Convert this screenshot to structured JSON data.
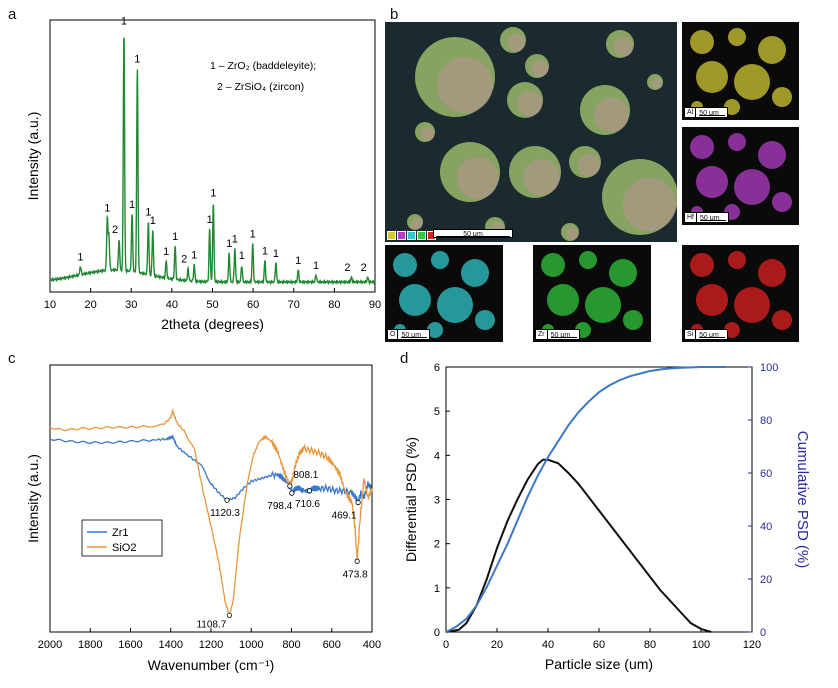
{
  "panel_labels": {
    "a": "a",
    "b": "b",
    "c": "c",
    "d": "d"
  },
  "chart_data": [
    {
      "id": "a",
      "type": "line",
      "title": "",
      "xlabel": "2theta (degrees)",
      "ylabel": "Intensity (a.u.)",
      "xlim": [
        10,
        90
      ],
      "ylim": [
        0,
        100
      ],
      "xticks": [
        10,
        20,
        30,
        40,
        50,
        60,
        70,
        80,
        90
      ],
      "legend": [
        "1 – ZrO₂ (baddeleyite);",
        "2 – ZrSiO₄ (zircon)"
      ],
      "peaks": [
        {
          "x": 17.5,
          "y": 3.5,
          "label": "1"
        },
        {
          "x": 24.1,
          "y": 22,
          "label": "1"
        },
        {
          "x": 24.5,
          "y": 14,
          "label": ""
        },
        {
          "x": 27.0,
          "y": 13,
          "label": "2"
        },
        {
          "x": 28.2,
          "y": 100,
          "label": "1"
        },
        {
          "x": 30.2,
          "y": 24,
          "label": "1"
        },
        {
          "x": 31.5,
          "y": 85,
          "label": "1"
        },
        {
          "x": 34.2,
          "y": 22,
          "label": "1"
        },
        {
          "x": 35.3,
          "y": 19,
          "label": "1"
        },
        {
          "x": 38.6,
          "y": 7,
          "label": "1"
        },
        {
          "x": 40.8,
          "y": 14,
          "label": "1"
        },
        {
          "x": 44.0,
          "y": 5,
          "label": "2"
        },
        {
          "x": 45.5,
          "y": 7,
          "label": "1"
        },
        {
          "x": 49.3,
          "y": 22,
          "label": "1"
        },
        {
          "x": 50.2,
          "y": 33,
          "label": "1"
        },
        {
          "x": 54.1,
          "y": 12,
          "label": "1"
        },
        {
          "x": 55.5,
          "y": 14,
          "label": "1"
        },
        {
          "x": 57.2,
          "y": 7,
          "label": "1"
        },
        {
          "x": 59.9,
          "y": 16,
          "label": "1"
        },
        {
          "x": 62.9,
          "y": 9,
          "label": "1"
        },
        {
          "x": 65.6,
          "y": 8,
          "label": "1"
        },
        {
          "x": 71.1,
          "y": 5,
          "label": "1"
        },
        {
          "x": 75.5,
          "y": 3,
          "label": "1"
        },
        {
          "x": 84.2,
          "y": 2,
          "label": "2"
        },
        {
          "x": 88.2,
          "y": 2,
          "label": "2"
        }
      ]
    },
    {
      "id": "c",
      "type": "line",
      "xlabel": "Wavenumber (cm⁻¹)",
      "ylabel": "Intensity (a.u.)",
      "xlim": [
        2000,
        400
      ],
      "xticks": [
        2000,
        1800,
        1600,
        1400,
        1200,
        1000,
        800,
        600,
        400
      ],
      "series": [
        {
          "name": "Zr1",
          "color": "#3c78c8",
          "points": [
            [
              2000,
              77
            ],
            [
              1900,
              76
            ],
            [
              1800,
              75.5
            ],
            [
              1700,
              75.5
            ],
            [
              1600,
              76
            ],
            [
              1500,
              76.5
            ],
            [
              1420,
              77
            ],
            [
              1390,
              78
            ],
            [
              1370,
              74
            ],
            [
              1330,
              71
            ],
            [
              1250,
              66
            ],
            [
              1200,
              58
            ],
            [
              1160,
              54
            ],
            [
              1120.3,
              51
            ],
            [
              1080,
              52
            ],
            [
              1040,
              56
            ],
            [
              1000,
              59
            ],
            [
              960,
              60
            ],
            [
              920,
              61
            ],
            [
              880,
              62
            ],
            [
              850,
              61
            ],
            [
              820,
              58
            ],
            [
              808.1,
              57
            ],
            [
              798.4,
              54
            ],
            [
              780,
              56
            ],
            [
              760,
              56
            ],
            [
              740,
              55
            ],
            [
              710.6,
              55
            ],
            [
              690,
              56
            ],
            [
              660,
              56
            ],
            [
              620,
              56
            ],
            [
              580,
              55
            ],
            [
              540,
              55
            ],
            [
              500,
              54
            ],
            [
              480,
              52
            ],
            [
              469.1,
              50
            ],
            [
              455,
              54
            ],
            [
              440,
              52
            ],
            [
              420,
              58
            ],
            [
              400,
              56
            ]
          ]
        },
        {
          "name": "SiO2",
          "color": "#e8963c",
          "points": [
            [
              2000,
              82
            ],
            [
              1950,
              81
            ],
            [
              1900,
              81
            ],
            [
              1850,
              81.5
            ],
            [
              1800,
              81.5
            ],
            [
              1700,
              82
            ],
            [
              1600,
              82
            ],
            [
              1500,
              82.5
            ],
            [
              1440,
              83
            ],
            [
              1400,
              86
            ],
            [
              1390,
              89
            ],
            [
              1370,
              84
            ],
            [
              1330,
              80
            ],
            [
              1280,
              72
            ],
            [
              1240,
              55
            ],
            [
              1200,
              40
            ],
            [
              1160,
              24
            ],
            [
              1130,
              8
            ],
            [
              1108.7,
              2
            ],
            [
              1090,
              8
            ],
            [
              1060,
              34
            ],
            [
              1020,
              58
            ],
            [
              990,
              70
            ],
            [
              960,
              76
            ],
            [
              930,
              78
            ],
            [
              900,
              76
            ],
            [
              870,
              72
            ],
            [
              840,
              64
            ],
            [
              810,
              57
            ],
            [
              795,
              60
            ],
            [
              780,
              66
            ],
            [
              760,
              71
            ],
            [
              740,
              73
            ],
            [
              700,
              72
            ],
            [
              660,
              71
            ],
            [
              620,
              69
            ],
            [
              590,
              66
            ],
            [
              560,
              62
            ],
            [
              530,
              54
            ],
            [
              500,
              50
            ],
            [
              485,
              40
            ],
            [
              473.8,
              25
            ],
            [
              460,
              42
            ],
            [
              440,
              60
            ],
            [
              420,
              52
            ],
            [
              400,
              56
            ]
          ]
        }
      ],
      "annotations": [
        {
          "x": 1120.3,
          "y": 51,
          "label": "1120.3"
        },
        {
          "x": 1108.7,
          "y": 2,
          "label": "1108.7"
        },
        {
          "x": 808.1,
          "y": 57,
          "label": "808.1"
        },
        {
          "x": 798.4,
          "y": 54,
          "label": "798.4"
        },
        {
          "x": 710.6,
          "y": 55,
          "label": "710.6"
        },
        {
          "x": 469.1,
          "y": 50,
          "label": "469.1"
        },
        {
          "x": 473.8,
          "y": 25,
          "label": "473.8"
        }
      ]
    },
    {
      "id": "d",
      "type": "line",
      "xlabel": "Particle size (um)",
      "ylabel": "Differential PSD (%)",
      "y2label": "Cumulative PSD (%)",
      "xlim": [
        0,
        120
      ],
      "ylim": [
        0,
        6
      ],
      "y2lim": [
        0,
        100
      ],
      "xticks": [
        0,
        20,
        40,
        60,
        80,
        100,
        120
      ],
      "yticks": [
        0,
        1,
        2,
        3,
        4,
        5,
        6
      ],
      "y2ticks": [
        0,
        20,
        40,
        60,
        80,
        100
      ],
      "series": [
        {
          "name": "Differential PSD",
          "axis": "y",
          "color": "#111111",
          "points": [
            [
              0,
              0
            ],
            [
              5,
              0.05
            ],
            [
              8,
              0.2
            ],
            [
              12,
              0.6
            ],
            [
              16,
              1.2
            ],
            [
              20,
              1.9
            ],
            [
              24,
              2.5
            ],
            [
              28,
              3.0
            ],
            [
              32,
              3.45
            ],
            [
              36,
              3.8
            ],
            [
              38,
              3.9
            ],
            [
              40,
              3.9
            ],
            [
              44,
              3.82
            ],
            [
              48,
              3.6
            ],
            [
              52,
              3.35
            ],
            [
              56,
              3.05
            ],
            [
              60,
              2.75
            ],
            [
              64,
              2.45
            ],
            [
              68,
              2.15
            ],
            [
              72,
              1.85
            ],
            [
              76,
              1.55
            ],
            [
              80,
              1.25
            ],
            [
              84,
              0.95
            ],
            [
              88,
              0.7
            ],
            [
              92,
              0.45
            ],
            [
              96,
              0.2
            ],
            [
              100,
              0.07
            ],
            [
              104,
              0
            ]
          ]
        },
        {
          "name": "Cumulative PSD",
          "axis": "y2",
          "color": "#3c78c8",
          "points": [
            [
              0,
              0
            ],
            [
              4,
              2
            ],
            [
              8,
              5
            ],
            [
              12,
              10
            ],
            [
              16,
              17
            ],
            [
              20,
              25
            ],
            [
              24,
              33
            ],
            [
              28,
              42
            ],
            [
              32,
              51
            ],
            [
              36,
              59
            ],
            [
              40,
              66
            ],
            [
              44,
              72
            ],
            [
              48,
              78
            ],
            [
              52,
              83
            ],
            [
              56,
              87
            ],
            [
              60,
              90.5
            ],
            [
              64,
              93
            ],
            [
              68,
              95
            ],
            [
              72,
              96.5
            ],
            [
              76,
              97.5
            ],
            [
              80,
              98.5
            ],
            [
              85,
              99.2
            ],
            [
              90,
              99.6
            ],
            [
              100,
              100
            ],
            [
              110,
              100
            ]
          ]
        }
      ]
    }
  ],
  "maps": {
    "main_scale": "50 μm",
    "elements": [
      {
        "name": "Al",
        "scale": "50 μm",
        "color": "#d4c836"
      },
      {
        "name": "Hf",
        "scale": "50 μm",
        "color": "#b43cc8"
      },
      {
        "name": "O",
        "scale": "50 μm",
        "color": "#30c8cc"
      },
      {
        "name": "Zr",
        "scale": "50 μm",
        "color": "#30c83c"
      },
      {
        "name": "Si",
        "scale": "50 μm",
        "color": "#e02020"
      }
    ],
    "legend_swatches": [
      "#d4c836",
      "#b43cc8",
      "#30c8cc",
      "#30c83c",
      "#e02020"
    ]
  }
}
